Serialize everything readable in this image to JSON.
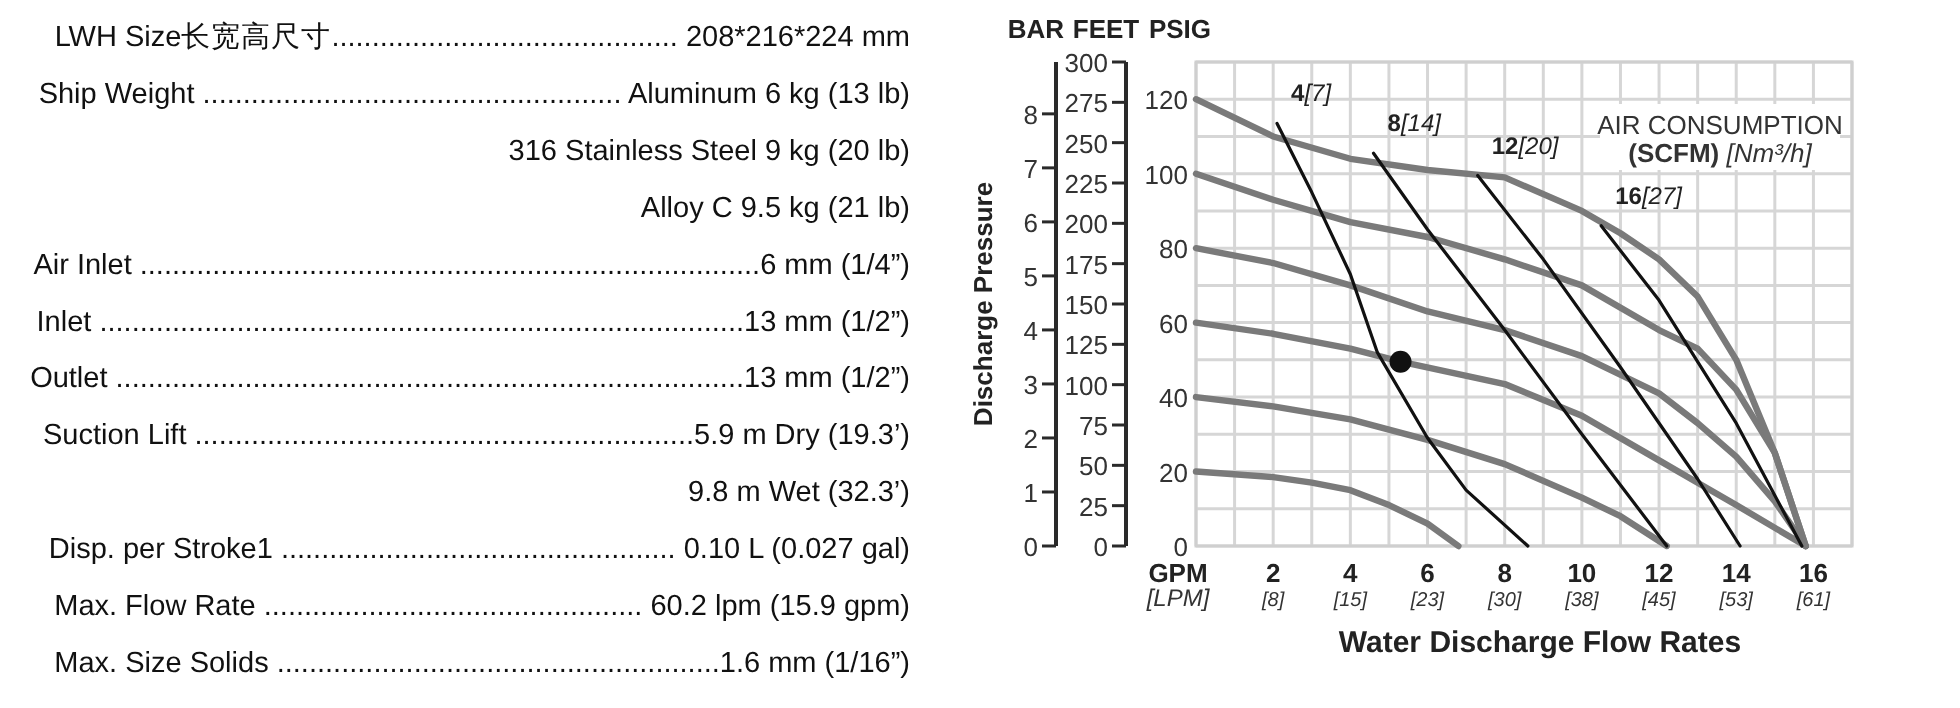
{
  "chart_data": [
    {
      "type": "other",
      "annotations": [
        "LWH Size长宽高尺寸........................................... 208*216*224 mm",
        "Ship Weight .................................................... Aluminum 6 kg (13 lb)",
        "316 Stainless Steel 9 kg (20 lb)",
        "Alloy C 9.5 kg (21 lb)",
        "Air Inlet .............................................................................6 mm (1/4”)",
        "Inlet ................................................................................13 mm (1/2”)",
        "Outlet ..............................................................................13 mm (1/2”)",
        "Suction Lift ..............................................................5.9 m Dry (19.3’)",
        "9.8 m Wet (32.3’)",
        "Disp. per Stroke1 ................................................. 0.10 L (0.027 gal)",
        "Max. Flow Rate ............................................... 60.2 lpm (15.9 gpm)",
        "Max. Size Solids .......................................................1.6 mm (1/16”)"
      ]
    },
    {
      "type": "line",
      "xlabel": "Water Discharge Flow Rates",
      "ylabel": "Discharge Pressure",
      "y2label": "FEET",
      "y3label": "PSIG",
      "xlim": [
        0,
        17
      ],
      "ylim": [
        0,
        8.96
      ],
      "y2lim": [
        0,
        300
      ],
      "y3lim": [
        0,
        130
      ],
      "xticks": [
        {
          "value": 0,
          "label": null
        },
        {
          "value": 1,
          "label": null
        },
        2,
        {
          "value": 3,
          "label": null
        },
        4,
        {
          "value": 5,
          "label": null
        },
        6,
        {
          "value": 7,
          "label": null
        },
        8,
        {
          "value": 9,
          "label": null
        },
        10,
        {
          "value": 11,
          "label": null
        },
        12,
        {
          "value": 13,
          "label": null
        },
        14,
        {
          "value": 15,
          "label": null
        },
        16,
        {
          "value": 17,
          "label": null
        }
      ],
      "x2lim": [
        0,
        64.35
      ],
      "x2ticks": [
        {
          "value": 7.57,
          "label": "[8]"
        },
        {
          "value": 15.14,
          "label": "[15]"
        },
        {
          "value": 22.71,
          "label": "[23]"
        },
        {
          "value": 30.28,
          "label": "[30]"
        },
        {
          "value": 37.85,
          "label": "[38]"
        },
        {
          "value": 45.42,
          "label": "[45]"
        },
        {
          "value": 52.99,
          "label": "[53]"
        },
        {
          "value": 60.57,
          "label": "[61]"
        }
      ],
      "y3ticks": [
        0,
        {
          "value": 10,
          "label": null
        },
        20,
        {
          "value": 30,
          "label": null
        },
        40,
        {
          "value": 50,
          "label": null
        },
        60,
        {
          "value": 70,
          "label": null
        },
        80,
        {
          "value": 90,
          "label": null
        },
        100,
        {
          "value": 110,
          "label": null
        },
        120,
        {
          "value": 130,
          "label": null
        }
      ],
      "yticks": [
        0,
        1,
        2,
        3,
        4,
        5,
        6,
        7,
        8
      ],
      "y2ticks": [
        0,
        25,
        50,
        75,
        100,
        125,
        150,
        175,
        200,
        225,
        250,
        275,
        300
      ],
      "grid": true,
      "line_style": "solid",
      "marker": "none",
      "series": [
        {
          "axis": "y3",
          "color": "#7a7a7a",
          "x": [
            0,
            2,
            3,
            4,
            5,
            6,
            6.8
          ],
          "values": [
            20,
            18.5,
            17,
            15,
            11,
            6,
            0
          ]
        },
        {
          "axis": "y3",
          "color": "#7a7a7a",
          "x": [
            0,
            2,
            4,
            6,
            8,
            10,
            11,
            12.2
          ],
          "values": [
            40,
            37.5,
            34,
            28.5,
            22,
            13,
            8,
            0
          ]
        },
        {
          "axis": "y3",
          "color": "#7a7a7a",
          "x": [
            0,
            2,
            4,
            5.3,
            8,
            10,
            12,
            13,
            14,
            15.8
          ],
          "values": [
            60,
            57,
            53,
            49.5,
            43.5,
            35,
            23,
            17,
            11,
            0
          ]
        },
        {
          "axis": "y3",
          "color": "#7a7a7a",
          "x": [
            0,
            2,
            4,
            6,
            8,
            10,
            12,
            13,
            14,
            15,
            15.8
          ],
          "values": [
            80,
            76,
            70,
            63,
            58,
            51,
            41,
            33,
            24,
            12,
            0
          ]
        },
        {
          "axis": "y3",
          "color": "#7a7a7a",
          "x": [
            0,
            2,
            4,
            6,
            8,
            10,
            12,
            13,
            14,
            15,
            15.8
          ],
          "values": [
            100,
            93,
            87,
            83,
            77,
            70,
            58,
            53,
            42,
            25,
            0
          ]
        },
        {
          "axis": "y3",
          "color": "#7a7a7a",
          "x": [
            0,
            2,
            4,
            6,
            8,
            10,
            11,
            12,
            13,
            14,
            15,
            15.8
          ],
          "values": [
            120,
            110,
            104,
            101,
            99,
            90,
            84,
            77,
            67,
            50,
            25,
            0
          ]
        },
        {
          "axis": "y3",
          "name": "4[7]",
          "color": "#111111",
          "x": [
            2.1,
            3,
            4,
            4.7,
            6,
            7,
            8.6
          ],
          "values": [
            113.5,
            95,
            73,
            52,
            29,
            15,
            0
          ]
        },
        {
          "axis": "y3",
          "name": "8[14]",
          "color": "#111111",
          "x": [
            4.6,
            6,
            8,
            10,
            12.2
          ],
          "values": [
            105.5,
            85,
            58,
            30,
            0
          ]
        },
        {
          "axis": "y3",
          "name": "12[20]",
          "color": "#111111",
          "x": [
            7.3,
            9,
            11,
            13,
            14.1
          ],
          "values": [
            99.5,
            77,
            48,
            18,
            0
          ]
        },
        {
          "axis": "y3",
          "name": "16[27]",
          "color": "#111111",
          "x": [
            10.5,
            12,
            14,
            15.7
          ],
          "values": [
            86,
            66,
            33,
            0
          ]
        },
        {
          "axis": "y3",
          "type": "scatter",
          "marker": "circle",
          "color": "#111111",
          "x": [
            5.3
          ],
          "values": [
            49.5
          ]
        }
      ],
      "annotations": [
        "BAR",
        "GPM\n[LPM]",
        "AIR CONSUMPTION\n(SCFM) [Nm³/h]"
      ]
    }
  ]
}
